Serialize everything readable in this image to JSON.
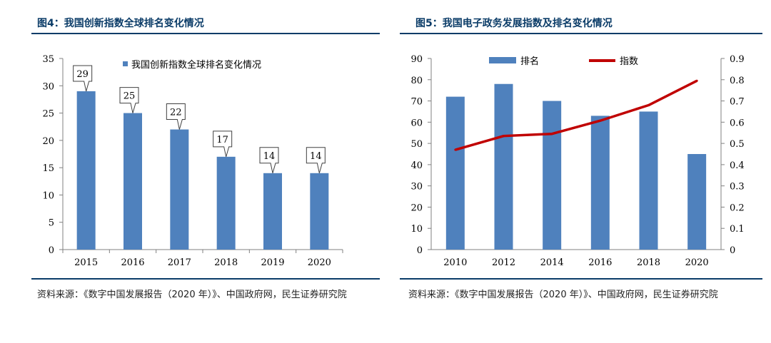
{
  "figures": [
    {
      "title": "图4：我国创新指数全球排名变化情况",
      "source": "资料来源：《数字中国发展报告（2020 年）》、中国政府网，民生证券研究院"
    },
    {
      "title": "图5：我国电子政务发展指数及排名变化情况",
      "source": "资料来源：《数字中国发展报告（2020 年）》、中国政府网，民生证券研究院"
    }
  ],
  "colors": {
    "bar": "#4f81bd",
    "line": "#c00000",
    "title": "#0b3c68"
  },
  "chart_data": [
    {
      "type": "bar",
      "categories": [
        "2015",
        "2016",
        "2017",
        "2018",
        "2019",
        "2020"
      ],
      "series": [
        {
          "name": "我国创新指数全球排名变化情况",
          "values": [
            29,
            25,
            22,
            17,
            14,
            14
          ]
        }
      ],
      "ylim": [
        0,
        35
      ],
      "yticks": [
        0,
        5,
        10,
        15,
        20,
        25,
        30,
        35
      ],
      "data_labels": true,
      "legend": "top"
    },
    {
      "type": "bar",
      "categories": [
        "2010",
        "2012",
        "2014",
        "2016",
        "2018",
        "2020"
      ],
      "series": [
        {
          "name": "排名",
          "type": "bar",
          "axis": "left",
          "values": [
            72,
            78,
            70,
            63,
            65,
            45
          ]
        },
        {
          "name": "指数",
          "type": "line",
          "axis": "right",
          "values": [
            0.47,
            0.535,
            0.545,
            0.607,
            0.68,
            0.795
          ]
        }
      ],
      "ylim": [
        0,
        90
      ],
      "yticks": [
        0,
        10,
        20,
        30,
        40,
        50,
        60,
        70,
        80,
        90
      ],
      "y2lim": [
        0,
        0.9
      ],
      "y2ticks": [
        "0",
        "0.1",
        "0.2",
        "0.3",
        "0.4",
        "0.5",
        "0.6",
        "0.7",
        "0.8",
        "0.9"
      ],
      "legend": "top"
    }
  ]
}
